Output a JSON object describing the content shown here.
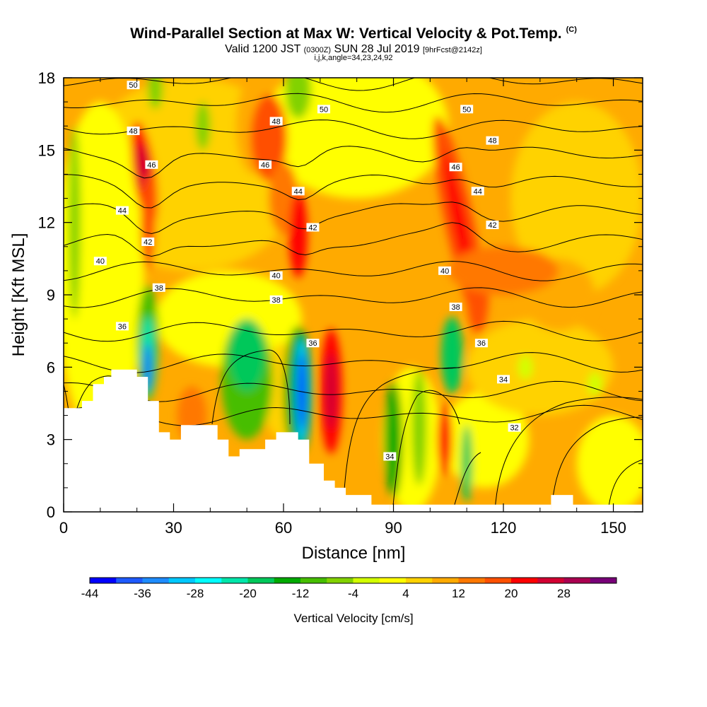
{
  "title": {
    "main": "Wind-Parallel Section at Max W: Vertical Velocity & Pot.Temp.",
    "main_units": "(C)",
    "valid_prefix": "Valid 1200 JST",
    "valid_utc": "(0300Z)",
    "valid_date": "SUN 28 Jul 2019",
    "valid_fcst": "[9hrFcst@2142z]",
    "indices": "i,j,k,angle=34,23,24,92"
  },
  "chart_data": {
    "type": "heatmap",
    "xlabel": "Distance [nm]",
    "ylabel": "Height [Kft MSL]",
    "xlim": [
      0,
      158
    ],
    "ylim": [
      0,
      18
    ],
    "x_ticks": [
      "0",
      "30",
      "60",
      "90",
      "120",
      "150"
    ],
    "y_ticks": [
      "0",
      "3",
      "6",
      "9",
      "12",
      "15",
      "18"
    ],
    "colorbar": {
      "title": "Vertical Velocity [cm/s]",
      "tick_labels": [
        "-44",
        "-36",
        "-28",
        "-20",
        "-12",
        "-4",
        "4",
        "12",
        "20",
        "28"
      ],
      "bins": [
        -44,
        -40,
        -36,
        -32,
        -28,
        -24,
        -20,
        -16,
        -12,
        -8,
        -4,
        0,
        4,
        8,
        12,
        16,
        20,
        24,
        28,
        32
      ],
      "colors": [
        "#0000ff",
        "#1e5aff",
        "#1e8cff",
        "#00c8ff",
        "#00ffff",
        "#00e6aa",
        "#00c85a",
        "#00aa00",
        "#46be00",
        "#82d200",
        "#d2ff00",
        "#ffff00",
        "#ffd200",
        "#ffaa00",
        "#ff7800",
        "#ff5000",
        "#ff0000",
        "#d20032",
        "#aa0050",
        "#780078"
      ]
    },
    "terrain_kft": [
      [
        0,
        4.3
      ],
      [
        5,
        4.3
      ],
      [
        5,
        4.6
      ],
      [
        8,
        4.6
      ],
      [
        8,
        5.3
      ],
      [
        11,
        5.3
      ],
      [
        11,
        5.6
      ],
      [
        13,
        5.6
      ],
      [
        13,
        5.9
      ],
      [
        20,
        5.9
      ],
      [
        20,
        5.6
      ],
      [
        23,
        5.6
      ],
      [
        23,
        4.6
      ],
      [
        26,
        4.6
      ],
      [
        26,
        3.3
      ],
      [
        29,
        3.3
      ],
      [
        29,
        3
      ],
      [
        32,
        3
      ],
      [
        32,
        3.6
      ],
      [
        42,
        3.6
      ],
      [
        42,
        3
      ],
      [
        45,
        3
      ],
      [
        45,
        2.3
      ],
      [
        48,
        2.3
      ],
      [
        48,
        2.6
      ],
      [
        55,
        2.6
      ],
      [
        55,
        3
      ],
      [
        58,
        3
      ],
      [
        58,
        3.3
      ],
      [
        64,
        3.3
      ],
      [
        64,
        3
      ],
      [
        67,
        3
      ],
      [
        67,
        2
      ],
      [
        71,
        2
      ],
      [
        71,
        1.3
      ],
      [
        74,
        1.3
      ],
      [
        74,
        1
      ],
      [
        77,
        1
      ],
      [
        77,
        0.7
      ],
      [
        84,
        0.7
      ],
      [
        84,
        0.3
      ],
      [
        89,
        0.3
      ],
      [
        89,
        0
      ],
      [
        158,
        0
      ]
    ],
    "theta_levels": [
      32,
      34,
      36,
      38,
      40,
      42,
      44,
      46,
      48,
      50
    ],
    "contour_labels": [
      {
        "text": "50",
        "x": 19,
        "y": 17.7
      },
      {
        "text": "50",
        "x": 71,
        "y": 16.7
      },
      {
        "text": "50",
        "x": 110,
        "y": 16.7
      },
      {
        "text": "48",
        "x": 19,
        "y": 15.8
      },
      {
        "text": "48",
        "x": 58,
        "y": 16.2
      },
      {
        "text": "48",
        "x": 117,
        "y": 15.4
      },
      {
        "text": "46",
        "x": 24,
        "y": 14.4
      },
      {
        "text": "46",
        "x": 55,
        "y": 14.4
      },
      {
        "text": "46",
        "x": 107,
        "y": 14.3
      },
      {
        "text": "44",
        "x": 16,
        "y": 12.5
      },
      {
        "text": "44",
        "x": 64,
        "y": 13.3
      },
      {
        "text": "44",
        "x": 113,
        "y": 13.3
      },
      {
        "text": "42",
        "x": 23,
        "y": 11.2
      },
      {
        "text": "42",
        "x": 68,
        "y": 11.8
      },
      {
        "text": "42",
        "x": 117,
        "y": 11.9
      },
      {
        "text": "40",
        "x": 10,
        "y": 10.4
      },
      {
        "text": "40",
        "x": 58,
        "y": 9.8
      },
      {
        "text": "40",
        "x": 104,
        "y": 10
      },
      {
        "text": "38",
        "x": 26,
        "y": 9.3
      },
      {
        "text": "38",
        "x": 58,
        "y": 8.8
      },
      {
        "text": "38",
        "x": 107,
        "y": 8.5
      },
      {
        "text": "36",
        "x": 16,
        "y": 7.7
      },
      {
        "text": "36",
        "x": 68,
        "y": 7
      },
      {
        "text": "36",
        "x": 114,
        "y": 7
      },
      {
        "text": "34",
        "x": 120,
        "y": 5.5
      },
      {
        "text": "34",
        "x": 89,
        "y": 2.3
      },
      {
        "text": "32",
        "x": 123,
        "y": 3.5
      }
    ]
  }
}
